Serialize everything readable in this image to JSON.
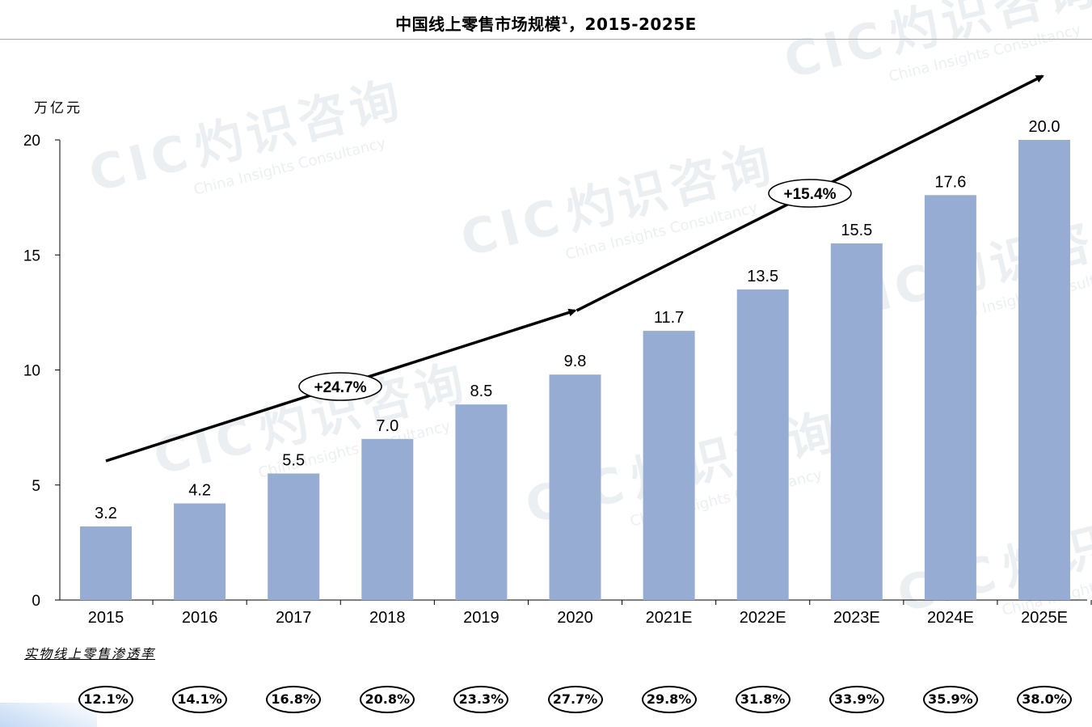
{
  "title": "中国线上零售市场规模",
  "title_sup": "1",
  "title_suffix": "，2015-2025E",
  "watermark": {
    "brand": "CIC",
    "name": "灼识咨询",
    "sub": "China Insights Consultancy"
  },
  "colors": {
    "bar": "#97acd2",
    "axis": "#000000",
    "arrow": "#000000"
  },
  "chart_data": {
    "type": "bar",
    "categories": [
      "2015",
      "2016",
      "2017",
      "2018",
      "2019",
      "2020",
      "2021E",
      "2022E",
      "2023E",
      "2024E",
      "2025E"
    ],
    "values": [
      3.2,
      4.2,
      5.5,
      7.0,
      8.5,
      9.8,
      11.7,
      13.5,
      15.5,
      17.6,
      20.0
    ],
    "data_labels": [
      "3.2",
      "4.2",
      "5.5",
      "7.0",
      "8.5",
      "9.8",
      "11.7",
      "13.5",
      "15.5",
      "17.6",
      "20.0"
    ],
    "ylabel": "万亿元",
    "ylim": [
      0,
      20
    ],
    "yticks": [
      "0",
      "5",
      "10",
      "15",
      "20"
    ],
    "grid": false,
    "cagr": [
      {
        "label": "+24.7%",
        "from": "2015",
        "to": "2020"
      },
      {
        "label": "+15.4%",
        "from": "2020",
        "to": "2025E"
      }
    ]
  },
  "penetration": {
    "label": "实物线上零售渗透率",
    "values": [
      "12.1%",
      "14.1%",
      "16.8%",
      "20.8%",
      "23.3%",
      "27.7%",
      "29.8%",
      "31.8%",
      "33.9%",
      "35.9%",
      "38.0%"
    ]
  }
}
